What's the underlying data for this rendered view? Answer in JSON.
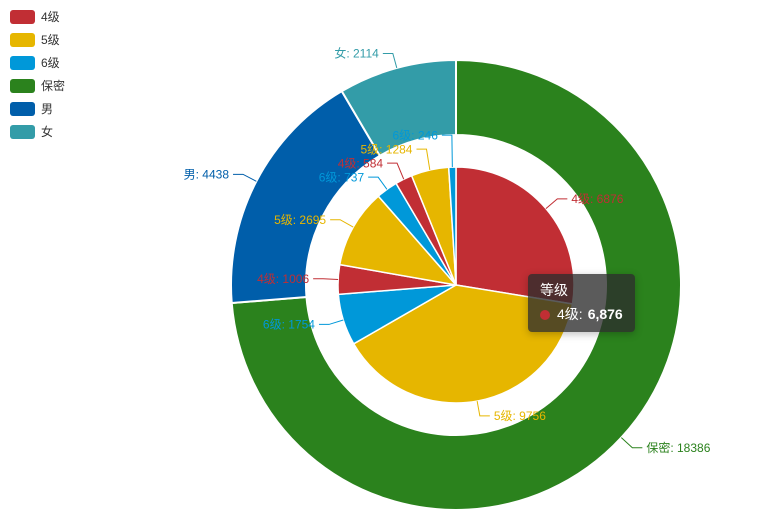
{
  "legend": {
    "items": [
      {
        "label": "4级",
        "color": "#c12e34"
      },
      {
        "label": "5级",
        "color": "#e6b600"
      },
      {
        "label": "6级",
        "color": "#0098d9"
      },
      {
        "label": "保密",
        "color": "#2b821d"
      },
      {
        "label": "男",
        "color": "#005eaa"
      },
      {
        "label": "女",
        "color": "#339ca8"
      }
    ]
  },
  "tooltip": {
    "title": "等级",
    "marker_color": "#c12e34",
    "item_label": "4级:",
    "item_value": "6,876"
  },
  "chart_data": {
    "type": "pie",
    "subtype": "nested-pie-with-outer-ring",
    "legend_position": "top-left",
    "start_angle_deg": 90,
    "clockwise": true,
    "series": [
      {
        "id": "inner",
        "name": "等级",
        "radius_px": [
          0,
          118
        ],
        "data": [
          {
            "name": "4级",
            "value": 6876,
            "label": "4级: 6876",
            "color": "#c12e34"
          },
          {
            "name": "5级",
            "value": 9756,
            "label": "5级: 9756",
            "color": "#e6b600"
          },
          {
            "name": "6级",
            "value": 1754,
            "label": "6级: 1754",
            "color": "#0098d9"
          },
          {
            "name": "4级",
            "value": 1006,
            "label": "4级: 1006",
            "color": "#c12e34"
          },
          {
            "name": "5级",
            "value": 2695,
            "label": "5级: 2695",
            "color": "#e6b600"
          },
          {
            "name": "6级",
            "value": 737,
            "label": "6级: 737",
            "color": "#0098d9"
          },
          {
            "name": "4级",
            "value": 584,
            "label": "4级: 584",
            "color": "#c12e34"
          },
          {
            "name": "5级",
            "value": 1284,
            "label": "5级: 1284",
            "color": "#e6b600"
          },
          {
            "name": "6级",
            "value": 246,
            "label": "6级: 246",
            "color": "#0098d9"
          }
        ]
      },
      {
        "id": "outer",
        "radius_px": [
          150,
          225
        ],
        "data": [
          {
            "name": "保密",
            "value": 18386,
            "label": "保密: 18386",
            "color": "#2b821d"
          },
          {
            "name": "男",
            "value": 4438,
            "label": "男: 4438",
            "color": "#005eaa"
          },
          {
            "name": "女",
            "value": 2114,
            "label": "女: 2114",
            "color": "#339ca8"
          }
        ]
      }
    ]
  }
}
